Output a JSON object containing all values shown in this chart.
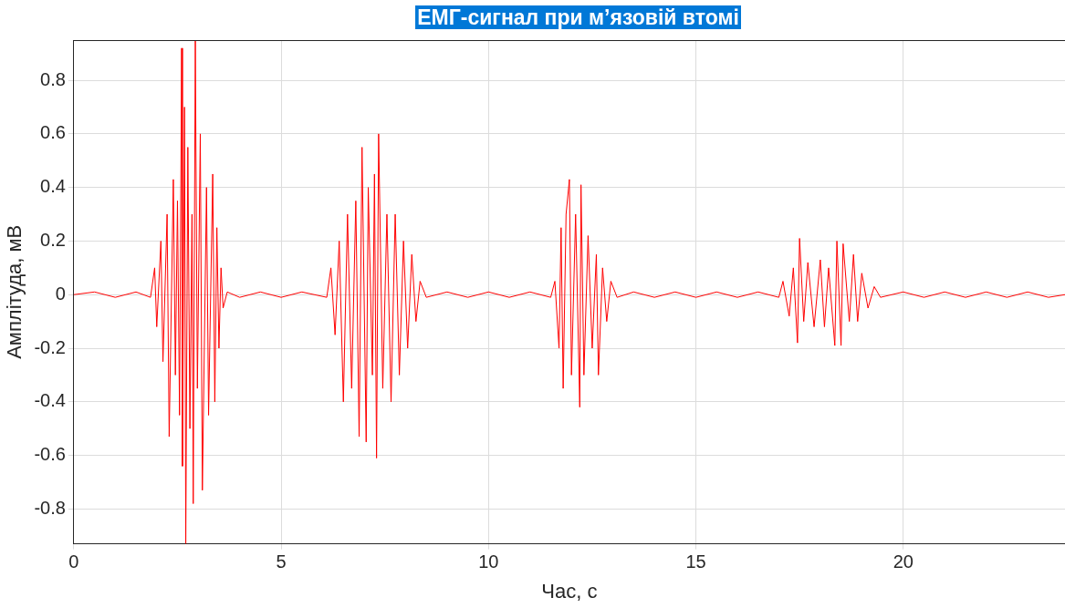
{
  "chart_data": {
    "type": "line",
    "title": "ЕМГ-сигнал при м’язовій втомі",
    "xlabel": "Час, с",
    "ylabel": "Амплітуда, мВ",
    "x": [
      0,
      0.5,
      1,
      1.5,
      1.85,
      1.95,
      2.0,
      2.1,
      2.15,
      2.25,
      2.3,
      2.4,
      2.45,
      2.5,
      2.55,
      2.6,
      2.62,
      2.67,
      2.7,
      2.75,
      2.8,
      2.85,
      2.88,
      2.93,
      2.98,
      3.05,
      3.1,
      3.2,
      3.25,
      3.35,
      3.4,
      3.45,
      3.5,
      3.55,
      3.6,
      3.7,
      4,
      4.5,
      5,
      5.5,
      6.1,
      6.2,
      6.3,
      6.4,
      6.5,
      6.6,
      6.7,
      6.8,
      6.88,
      6.95,
      7.05,
      7.1,
      7.2,
      7.25,
      7.3,
      7.35,
      7.45,
      7.55,
      7.65,
      7.75,
      7.85,
      7.95,
      8.05,
      8.15,
      8.25,
      8.35,
      8.5,
      9,
      9.5,
      10,
      10.5,
      11,
      11.5,
      11.6,
      11.7,
      11.75,
      11.8,
      11.87,
      11.95,
      12.0,
      12.1,
      12.2,
      12.23,
      12.3,
      12.4,
      12.5,
      12.6,
      12.65,
      12.75,
      12.85,
      12.95,
      13.1,
      13.5,
      14,
      14.5,
      15,
      15.5,
      16,
      16.5,
      17,
      17.1,
      17.25,
      17.35,
      17.45,
      17.5,
      17.6,
      17.7,
      17.85,
      18.0,
      18.1,
      18.2,
      18.35,
      18.4,
      18.5,
      18.55,
      18.7,
      18.8,
      18.9,
      19.0,
      19.15,
      19.3,
      19.45,
      20,
      20.5,
      21,
      21.5,
      22,
      22.5,
      23,
      23.5,
      23.9
    ],
    "series": [
      {
        "color": "#ff0000",
        "values": [
          0,
          0.01,
          -0.01,
          0.01,
          -0.01,
          0.1,
          -0.12,
          0.2,
          -0.25,
          0.3,
          -0.53,
          0.43,
          -0.3,
          0.35,
          -0.45,
          0.92,
          -0.64,
          0.7,
          -0.93,
          0.55,
          -0.5,
          0.3,
          -0.78,
          0.95,
          -0.35,
          0.6,
          -0.73,
          0.4,
          -0.45,
          0.45,
          -0.4,
          0.25,
          -0.2,
          0.1,
          -0.05,
          0.01,
          -0.01,
          0.01,
          -0.01,
          0.01,
          -0.01,
          0.1,
          -0.15,
          0.2,
          -0.4,
          0.3,
          -0.35,
          0.35,
          -0.53,
          0.55,
          -0.55,
          0.4,
          -0.3,
          0.45,
          -0.61,
          0.6,
          -0.35,
          0.3,
          -0.4,
          0.3,
          -0.3,
          0.2,
          -0.2,
          0.15,
          -0.1,
          0.05,
          -0.01,
          0.01,
          -0.01,
          0.01,
          -0.01,
          0.01,
          -0.01,
          0.05,
          -0.2,
          0.25,
          -0.35,
          0.3,
          0.43,
          -0.3,
          0.3,
          -0.42,
          0.41,
          -0.3,
          0.22,
          -0.2,
          0.15,
          -0.3,
          0.1,
          -0.1,
          0.05,
          -0.01,
          0.01,
          -0.01,
          0.01,
          -0.01,
          0.01,
          -0.01,
          0.01,
          -0.01,
          0.05,
          -0.08,
          0.1,
          -0.18,
          0.21,
          -0.1,
          0.12,
          -0.12,
          0.13,
          -0.12,
          0.1,
          -0.19,
          0.2,
          -0.19,
          0.19,
          -0.1,
          0.15,
          -0.1,
          0.08,
          -0.05,
          0.03,
          -0.01,
          0.01,
          -0.01,
          0.01,
          -0.01,
          0.01,
          -0.01,
          0.01,
          -0.01,
          0
        ]
      }
    ],
    "xlim": [
      0,
      23.9
    ],
    "ylim": [
      -0.93,
      0.95
    ],
    "xticks": [
      0,
      5,
      10,
      15,
      20
    ],
    "yticks": [
      -0.8,
      -0.6,
      -0.4,
      -0.2,
      0,
      0.2,
      0.4,
      0.6,
      0.8
    ],
    "grid": true
  }
}
